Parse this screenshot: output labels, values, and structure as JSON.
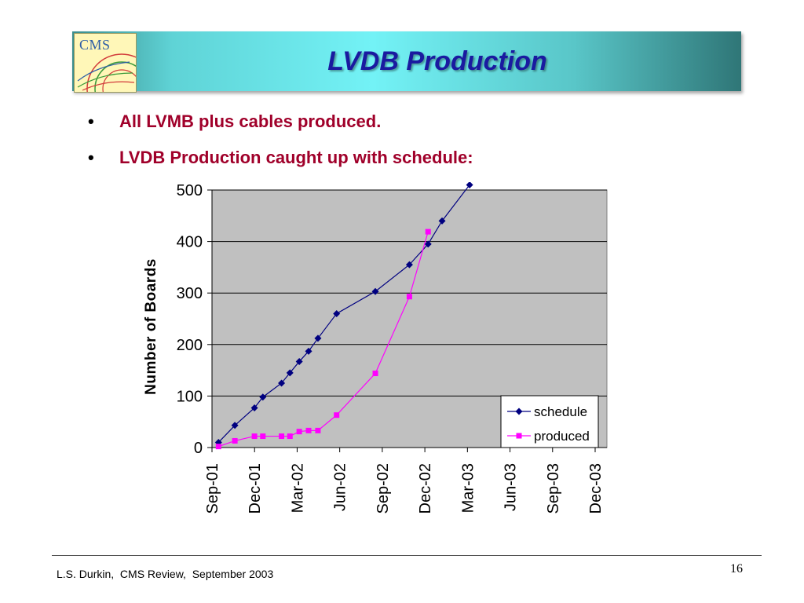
{
  "slide": {
    "title": "LVDB Production",
    "logo_text": "CMS",
    "bullets": [
      "All LVMB plus cables produced.",
      "LVDB Production caught up with schedule:"
    ],
    "bullet_glyph": "•",
    "footer": "L.S. Durkin,  CMS Review,  September 2003",
    "page_number": "16"
  },
  "colors": {
    "title": "#1a1aa0",
    "bullet_text": "#a0002a",
    "plot_background": "#c0c0c0",
    "schedule": "#000080",
    "produced": "#ff00ff"
  },
  "chart_data": {
    "type": "line",
    "ylabel": "Number of Boards",
    "xlabel": "",
    "ylim": [
      0,
      500
    ],
    "yticks": [
      0,
      100,
      200,
      300,
      400,
      500
    ],
    "xticks": [
      "Sep-01",
      "Dec-01",
      "Mar-02",
      "Jun-02",
      "Sep-02",
      "Dec-02",
      "Mar-03",
      "Jun-03",
      "Sep-03",
      "Dec-03"
    ],
    "grid": true,
    "legend": "bottom-right",
    "series": [
      {
        "name": "schedule",
        "marker": "diamond",
        "color": "#000080",
        "points": [
          [
            "2001-09-15",
            10
          ],
          [
            "2001-10-20",
            43
          ],
          [
            "2001-12-01",
            77
          ],
          [
            "2001-12-19",
            98
          ],
          [
            "2002-01-28",
            125
          ],
          [
            "2002-02-15",
            145
          ],
          [
            "2002-03-07",
            167
          ],
          [
            "2002-03-27",
            187
          ],
          [
            "2002-04-16",
            212
          ],
          [
            "2002-05-26",
            260
          ],
          [
            "2002-08-17",
            303
          ],
          [
            "2002-10-29",
            355
          ],
          [
            "2002-12-08",
            395
          ],
          [
            "2003-01-07",
            440
          ],
          [
            "2003-03-07",
            510
          ]
        ]
      },
      {
        "name": "produced",
        "marker": "square",
        "color": "#ff00ff",
        "points": [
          [
            "2001-09-15",
            2
          ],
          [
            "2001-10-20",
            13
          ],
          [
            "2001-12-01",
            22
          ],
          [
            "2001-12-19",
            22
          ],
          [
            "2002-01-28",
            22
          ],
          [
            "2002-02-15",
            22
          ],
          [
            "2002-03-07",
            31
          ],
          [
            "2002-03-27",
            33
          ],
          [
            "2002-04-16",
            33
          ],
          [
            "2002-05-26",
            63
          ],
          [
            "2002-08-17",
            144
          ],
          [
            "2002-10-29",
            293
          ],
          [
            "2002-12-08",
            419
          ]
        ]
      }
    ]
  }
}
